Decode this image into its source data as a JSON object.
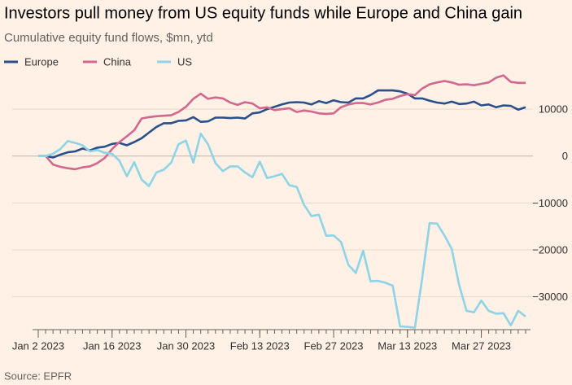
{
  "chart_data": {
    "type": "line",
    "title": "Investors pull money from US equity funds while Europe and China gain",
    "subtitle": "Cumulative equity fund flows, $mn, ytd",
    "source": "Source: EPFR",
    "x": [
      "2023-01-02",
      "2023-01-03",
      "2023-01-04",
      "2023-01-05",
      "2023-01-06",
      "2023-01-09",
      "2023-01-10",
      "2023-01-11",
      "2023-01-12",
      "2023-01-13",
      "2023-01-16",
      "2023-01-17",
      "2023-01-18",
      "2023-01-19",
      "2023-01-20",
      "2023-01-23",
      "2023-01-24",
      "2023-01-25",
      "2023-01-26",
      "2023-01-27",
      "2023-01-30",
      "2023-01-31",
      "2023-02-01",
      "2023-02-02",
      "2023-02-03",
      "2023-02-06",
      "2023-02-07",
      "2023-02-08",
      "2023-02-09",
      "2023-02-10",
      "2023-02-13",
      "2023-02-14",
      "2023-02-15",
      "2023-02-16",
      "2023-02-17",
      "2023-02-20",
      "2023-02-21",
      "2023-02-22",
      "2023-02-23",
      "2023-02-24",
      "2023-02-27",
      "2023-02-28",
      "2023-03-01",
      "2023-03-02",
      "2023-03-03",
      "2023-03-06",
      "2023-03-07",
      "2023-03-08",
      "2023-03-09",
      "2023-03-10",
      "2023-03-13",
      "2023-03-14",
      "2023-03-15",
      "2023-03-16",
      "2023-03-17",
      "2023-03-20",
      "2023-03-21",
      "2023-03-22",
      "2023-03-23",
      "2023-03-24",
      "2023-03-27",
      "2023-03-28",
      "2023-03-29",
      "2023-03-30",
      "2023-03-31",
      "2023-04-03",
      "2023-04-04"
    ],
    "xticks": [
      {
        "value": "2023-01-02",
        "label": "Jan 2 2023"
      },
      {
        "value": "2023-01-16",
        "label": "Jan 16 2023"
      },
      {
        "value": "2023-01-30",
        "label": "Jan 30 2023"
      },
      {
        "value": "2023-02-13",
        "label": "Feb 13 2023"
      },
      {
        "value": "2023-02-27",
        "label": "Feb 27 2023"
      },
      {
        "value": "2023-03-13",
        "label": "Mar 13 2023"
      },
      {
        "value": "2023-03-27",
        "label": "Mar 27 2023"
      }
    ],
    "ylim": [
      -37000,
      18000
    ],
    "yticks": [
      {
        "value": -30000,
        "label": "−30000"
      },
      {
        "value": -20000,
        "label": "−20000"
      },
      {
        "value": -10000,
        "label": "−10000"
      },
      0,
      10000
    ],
    "grid": true,
    "legend": "top-left",
    "series": [
      {
        "name": "Europe",
        "color": "#2b4f8a",
        "values": [
          0,
          0,
          -300,
          300,
          800,
          1000,
          1600,
          1200,
          1800,
          2000,
          2600,
          2800,
          2300,
          3000,
          3800,
          5000,
          6200,
          7000,
          7000,
          7500,
          7600,
          8300,
          7300,
          7400,
          8200,
          8200,
          8100,
          8200,
          8000,
          9100,
          9300,
          10000,
          10500,
          11000,
          11400,
          11500,
          11400,
          11000,
          11700,
          11300,
          11900,
          11500,
          11400,
          12300,
          12300,
          13000,
          14000,
          14000,
          14000,
          13800,
          13300,
          12300,
          12300,
          11800,
          11400,
          11200,
          11600,
          11100,
          11200,
          11600,
          10800,
          11000,
          10400,
          10800,
          10700,
          9900,
          10400
        ]
      },
      {
        "name": "China",
        "color": "#d2688f",
        "values": [
          0,
          0,
          -1800,
          -2300,
          -2600,
          -2800,
          -2400,
          -2200,
          -1500,
          -400,
          1500,
          3000,
          4200,
          5500,
          8000,
          8300,
          8500,
          8600,
          8700,
          9400,
          10500,
          12200,
          13300,
          12200,
          12500,
          12300,
          11400,
          10900,
          11500,
          11200,
          10200,
          10400,
          9800,
          10000,
          10200,
          9400,
          9700,
          9500,
          9100,
          9000,
          9100,
          10400,
          11000,
          11300,
          11300,
          11000,
          11400,
          12000,
          12200,
          12800,
          13200,
          13000,
          14400,
          15300,
          15700,
          16000,
          15700,
          15200,
          15300,
          15100,
          15400,
          15700,
          16700,
          17200,
          15800,
          15600,
          15600
        ]
      },
      {
        "name": "US",
        "color": "#8fd3e6",
        "values": [
          0,
          0,
          500,
          1500,
          3200,
          2800,
          2300,
          1000,
          1300,
          700,
          500,
          -1000,
          -4300,
          -1300,
          -5000,
          -6400,
          -3500,
          -2900,
          -1400,
          2500,
          3300,
          -1400,
          4800,
          2500,
          -1500,
          -3200,
          -2200,
          -2200,
          -3500,
          -4500,
          -1200,
          -4700,
          -4300,
          -3800,
          -6200,
          -6600,
          -10400,
          -12800,
          -12500,
          -17000,
          -16900,
          -18300,
          -23200,
          -24900,
          -20200,
          -26700,
          -26600,
          -27000,
          -27600,
          -36300,
          -36400,
          -36600,
          -26000,
          -14300,
          -14400,
          -16900,
          -19800,
          -27500,
          -33000,
          -33300,
          -30800,
          -33000,
          -33600,
          -33500,
          -36100,
          -33000,
          -34200
        ]
      }
    ]
  }
}
